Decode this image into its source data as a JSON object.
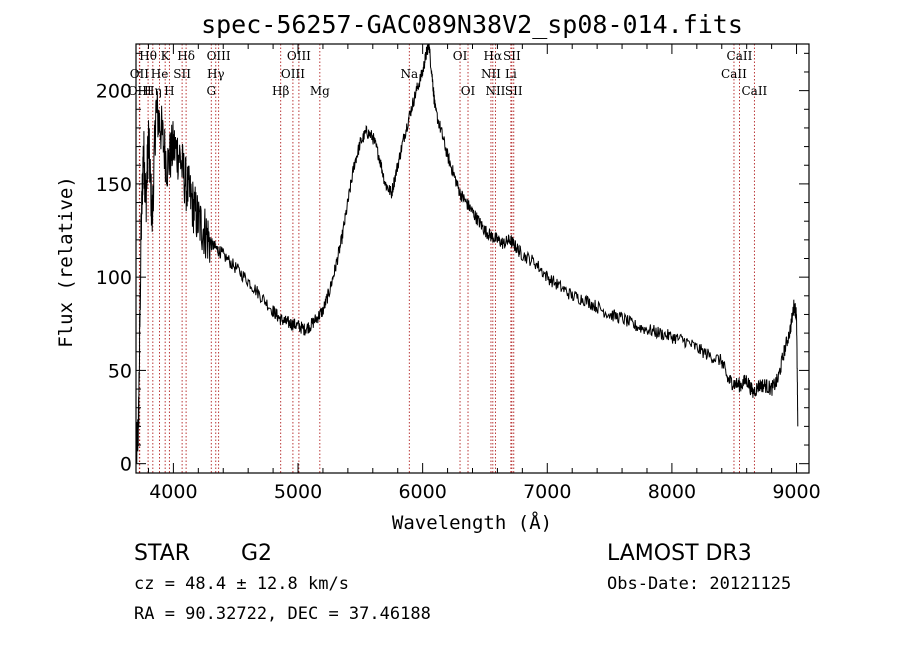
{
  "chart_data": {
    "type": "line",
    "title": "spec-56257-GAC089N38V2_sp08-014.fits",
    "xlabel": "Wavelength (Å)",
    "ylabel": "Flux (relative)",
    "xlim": [
      3700,
      9100
    ],
    "ylim": [
      -5,
      225
    ],
    "xticks": [
      4000,
      5000,
      6000,
      7000,
      8000,
      9000
    ],
    "xtick_labels": [
      "4000",
      "5000",
      "6000",
      "7000",
      "8000",
      "9000"
    ],
    "yticks": [
      0,
      50,
      100,
      150,
      200
    ],
    "ytick_labels": [
      "0",
      "50",
      "100",
      "150",
      "200"
    ],
    "grid": false,
    "series": [
      {
        "name": "spectrum",
        "x": [
          3700,
          3720,
          3740,
          3760,
          3780,
          3800,
          3830,
          3860,
          3900,
          3950,
          4000,
          4050,
          4100,
          4150,
          4200,
          4250,
          4300,
          4350,
          4400,
          4500,
          4600,
          4700,
          4800,
          4850,
          4900,
          4950,
          5000,
          5050,
          5100,
          5150,
          5200,
          5250,
          5300,
          5350,
          5400,
          5450,
          5500,
          5550,
          5600,
          5650,
          5700,
          5750,
          5800,
          5850,
          5900,
          5950,
          6000,
          6030,
          6050,
          6080,
          6100,
          6150,
          6200,
          6250,
          6300,
          6350,
          6400,
          6450,
          6500,
          6550,
          6600,
          6650,
          6700,
          6750,
          6800,
          6900,
          7000,
          7100,
          7200,
          7300,
          7400,
          7500,
          7600,
          7700,
          7800,
          7900,
          8000,
          8100,
          8200,
          8300,
          8400,
          8450,
          8500,
          8550,
          8600,
          8650,
          8700,
          8750,
          8800,
          8850,
          8900,
          8950,
          8980,
          9000,
          9010
        ],
        "y": [
          5,
          20,
          120,
          170,
          140,
          175,
          130,
          190,
          180,
          160,
          170,
          165,
          150,
          140,
          130,
          125,
          118,
          115,
          112,
          105,
          98,
          90,
          82,
          78,
          76,
          75,
          74,
          72,
          74,
          78,
          82,
          92,
          105,
          120,
          140,
          160,
          172,
          178,
          175,
          165,
          150,
          145,
          160,
          175,
          188,
          200,
          210,
          220,
          225,
          205,
          190,
          178,
          165,
          155,
          145,
          140,
          135,
          130,
          125,
          122,
          120,
          118,
          120,
          116,
          112,
          108,
          100,
          95,
          90,
          88,
          84,
          80,
          78,
          74,
          72,
          70,
          68,
          66,
          62,
          58,
          55,
          45,
          43,
          42,
          45,
          38,
          42,
          42,
          40,
          45,
          60,
          72,
          85,
          80,
          20
        ]
      }
    ],
    "spectral_lines": [
      {
        "label": "Hθ",
        "wave": 3797,
        "row": 0
      },
      {
        "label": "OII",
        "wave": 3727,
        "row": 1
      },
      {
        "label": "OIII",
        "wave": 3730,
        "row": 2
      },
      {
        "label": "K",
        "wave": 3934,
        "row": 0
      },
      {
        "label": "He",
        "wave": 3889,
        "row": 1
      },
      {
        "label": "Hη",
        "wave": 3835,
        "row": 2
      },
      {
        "label": "Hδ",
        "wave": 4102,
        "row": 0
      },
      {
        "label": "SII",
        "wave": 4070,
        "row": 1
      },
      {
        "label": "H",
        "wave": 3968,
        "row": 2
      },
      {
        "label": "OIII",
        "wave": 4363,
        "row": 0
      },
      {
        "label": "Hγ",
        "wave": 4340,
        "row": 1
      },
      {
        "label": "G",
        "wave": 4304,
        "row": 2
      },
      {
        "label": "OIII",
        "wave": 5007,
        "row": 0
      },
      {
        "label": "OIII",
        "wave": 4959,
        "row": 1
      },
      {
        "label": "Hβ",
        "wave": 4861,
        "row": 2
      },
      {
        "label": "Mg",
        "wave": 5175,
        "row": 2
      },
      {
        "label": "Na",
        "wave": 5893,
        "row": 1
      },
      {
        "label": "OI",
        "wave": 6300,
        "row": 0
      },
      {
        "label": "OI",
        "wave": 6364,
        "row": 2
      },
      {
        "label": "Hα",
        "wave": 6563,
        "row": 0
      },
      {
        "label": "SII",
        "wave": 6716,
        "row": 0
      },
      {
        "label": "NII",
        "wave": 6548,
        "row": 1
      },
      {
        "label": "Li",
        "wave": 6708,
        "row": 1
      },
      {
        "label": "NII",
        "wave": 6584,
        "row": 2
      },
      {
        "label": "SII",
        "wave": 6731,
        "row": 2
      },
      {
        "label": "CaII",
        "wave": 8542,
        "row": 0
      },
      {
        "label": "CaII",
        "wave": 8498,
        "row": 1
      },
      {
        "label": "CaII",
        "wave": 8662,
        "row": 2
      }
    ]
  },
  "info": {
    "class_label": "STAR",
    "subclass": "G2",
    "survey": "LAMOST DR3",
    "cz_text": "cz = 48.4 ± 12.8 km/s",
    "obs_date": "Obs-Date: 20121125",
    "radec": "RA =  90.32722, DEC =  37.46188"
  },
  "colors": {
    "spectrum": "#000000",
    "line_marker": "#b22222",
    "axes": "#000000"
  }
}
